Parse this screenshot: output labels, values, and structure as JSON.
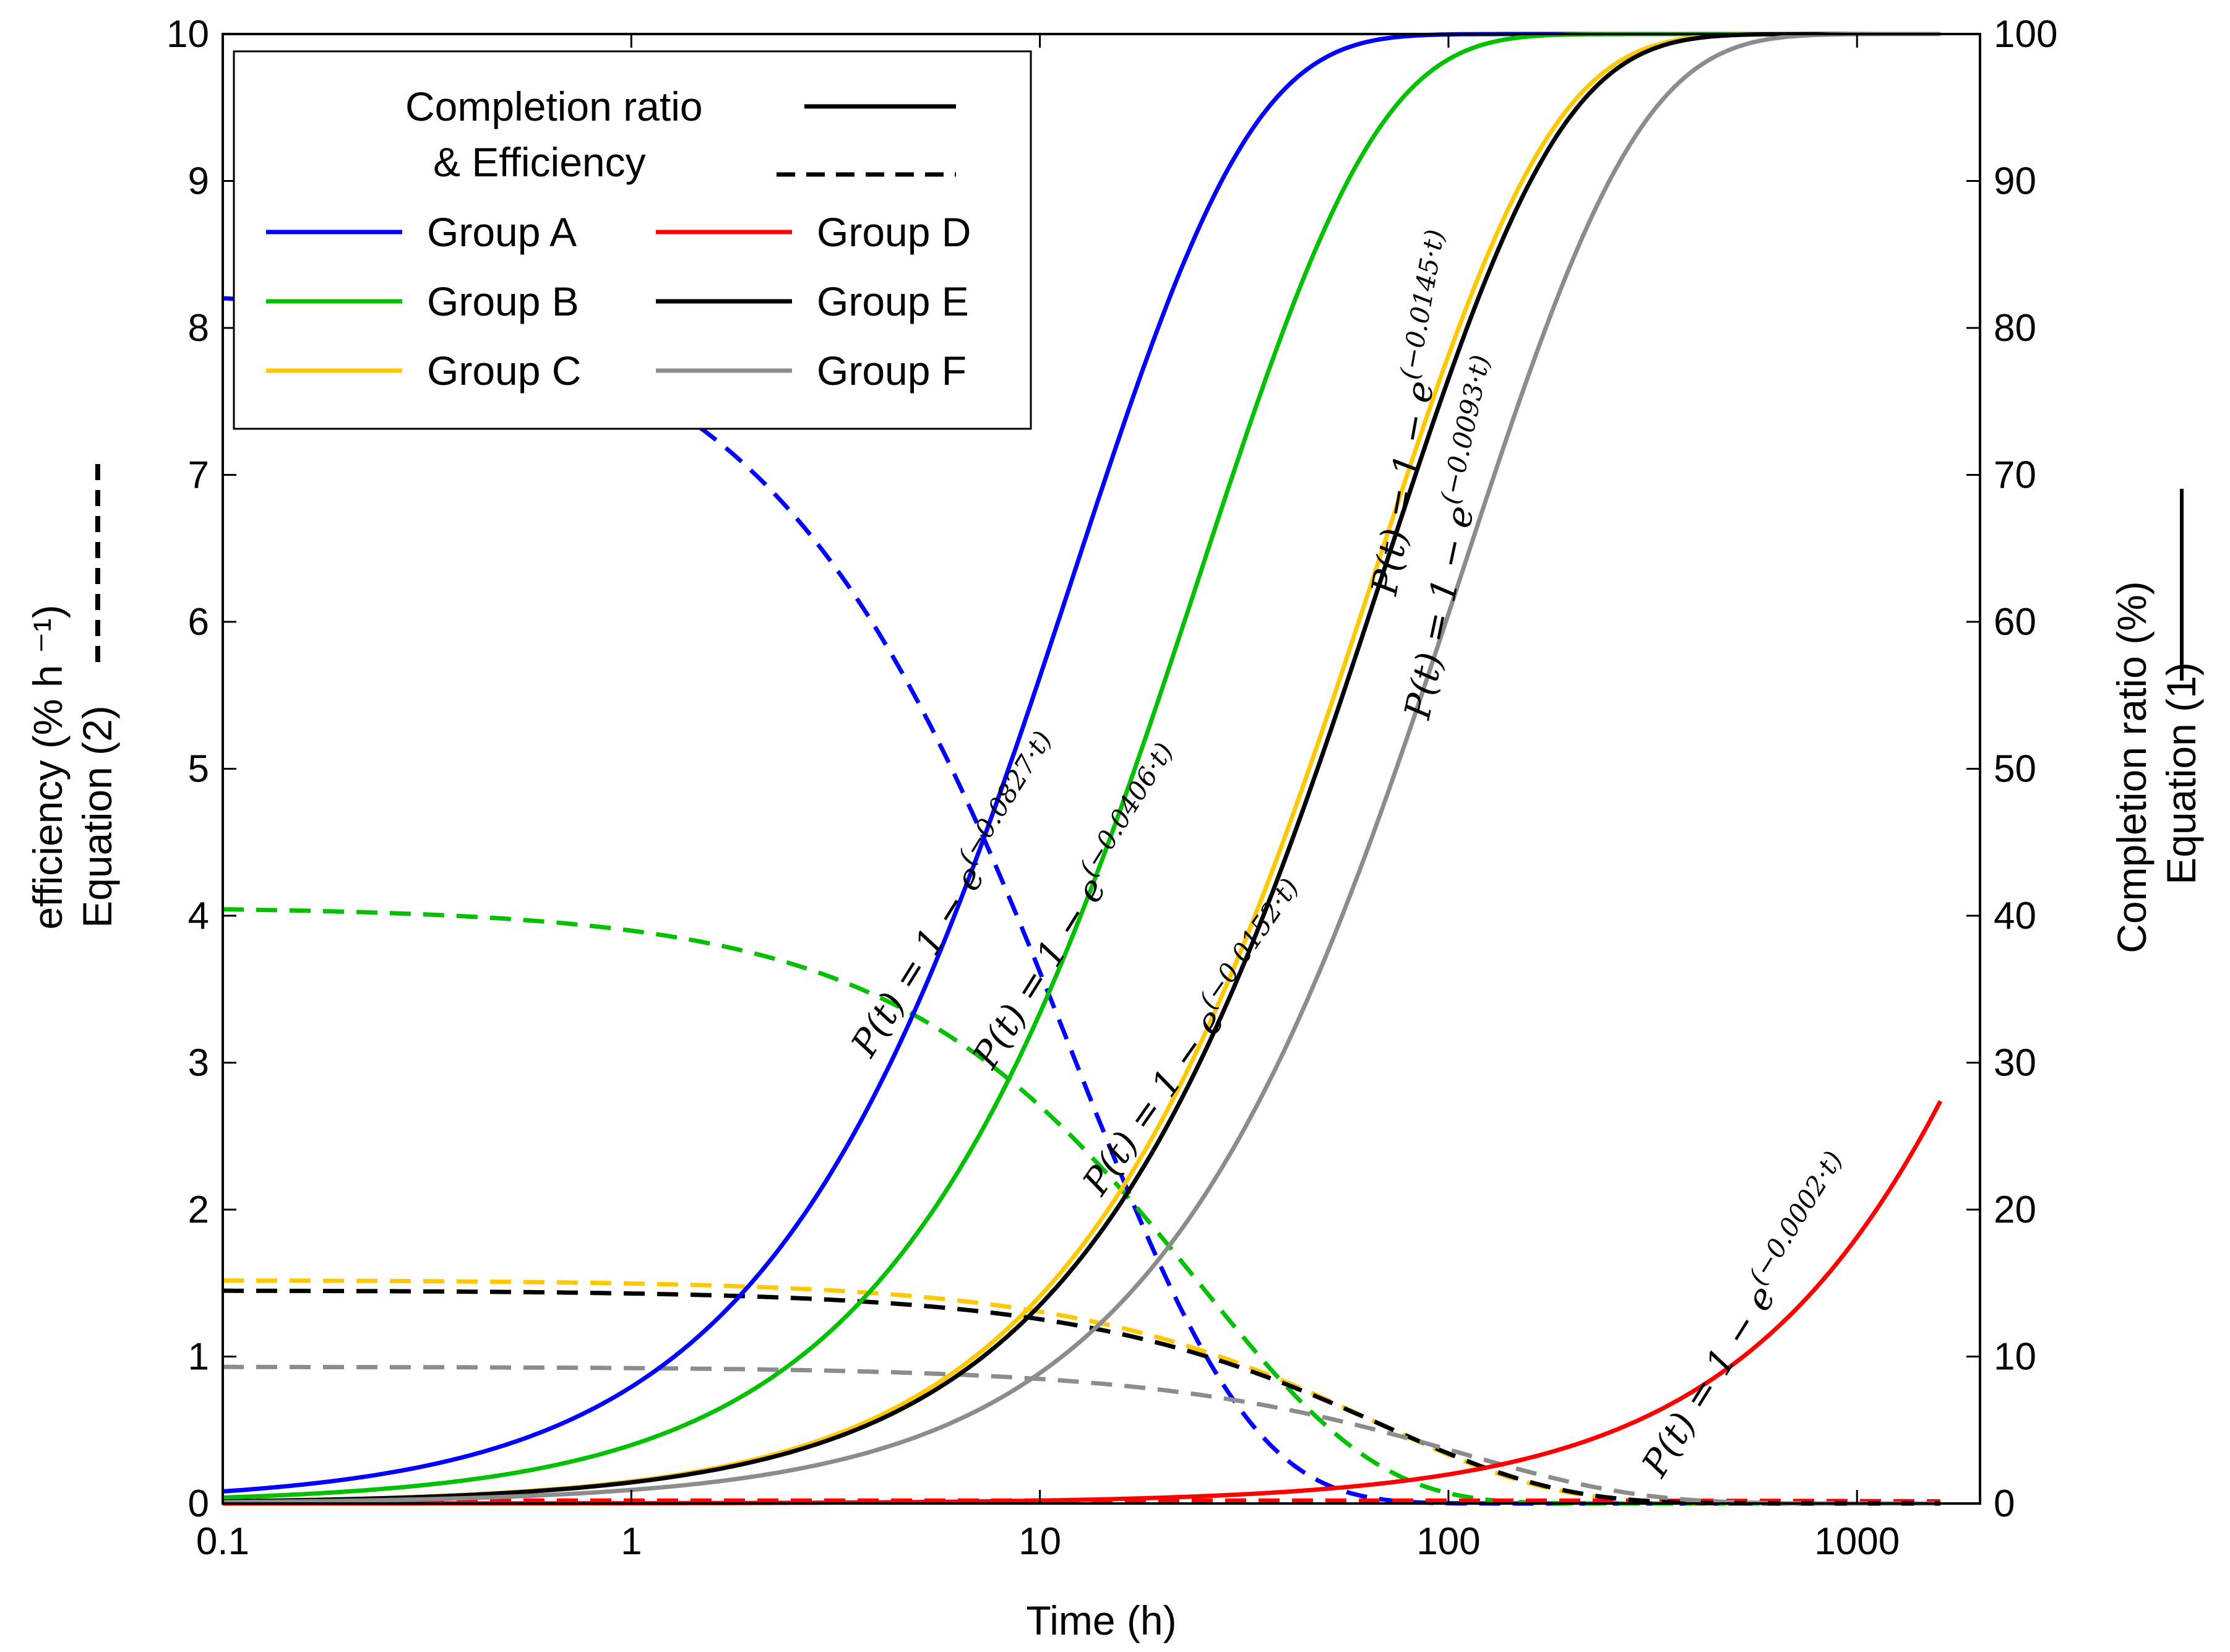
{
  "chart_data": {
    "type": "line",
    "xlabel": "Time (h)",
    "xscale": "log",
    "xlim": [
      0.1,
      2000
    ],
    "x_ticks": [
      {
        "value": 0.1,
        "label": "0.1"
      },
      {
        "value": 1,
        "label": "1"
      },
      {
        "value": 10,
        "label": "10"
      },
      {
        "value": 100,
        "label": "100"
      },
      {
        "value": 1000,
        "label": "1000"
      }
    ],
    "y_left": {
      "label_line1": "efficiency (% h ⁻¹)",
      "label_line2": "Equation (2)",
      "lim": [
        0,
        10
      ],
      "ticks": [
        "0",
        "1",
        "2",
        "3",
        "4",
        "5",
        "6",
        "7",
        "8",
        "9",
        "10"
      ]
    },
    "y_right": {
      "label_line1": "Completion ratio (%)",
      "label_line2": "Equation (1)",
      "lim": [
        0,
        100
      ],
      "ticks": [
        "0",
        "10",
        "20",
        "30",
        "40",
        "50",
        "60",
        "70",
        "80",
        "90",
        "100"
      ]
    },
    "legend": {
      "style_completion_line1": "Completion  ratio",
      "style_completion_line2": "& Efficiency"
    },
    "series": [
      {
        "name": "Group A",
        "color": "#0000ff",
        "k": 0.0827,
        "x_end": 1600
      },
      {
        "name": "Group B",
        "color": "#00c000",
        "k": 0.0406,
        "x_end": 1600
      },
      {
        "name": "Group C",
        "color": "#ffc800",
        "k": 0.0152,
        "x_end": 1600
      },
      {
        "name": "Group D",
        "color": "#ff0000",
        "k": 0.0002,
        "x_end": 1600
      },
      {
        "name": "Group E",
        "color": "#000000",
        "k": 0.0145,
        "x_end": 1600
      },
      {
        "name": "Group F",
        "color": "#8c8c8c",
        "k": 0.0093,
        "x_end": 1600
      }
    ],
    "equations": [
      {
        "group": "Group A",
        "lhs": "P(t) = 1 − e",
        "exp": "(−0.0827·t)"
      },
      {
        "group": "Group B",
        "lhs": "P(t) = 1 − e",
        "exp": "(−0.0406·t)"
      },
      {
        "group": "Group C",
        "lhs": "P(t) = 1 − e",
        "exp": "(−0.0152·t)"
      },
      {
        "group": "Group D",
        "lhs": "P(t) = 1 − e",
        "exp": "(−0.0002·t)"
      },
      {
        "group": "Group E",
        "lhs": "P(t) = 1 − e",
        "exp": "(−0.0145·t)"
      },
      {
        "group": "Group F",
        "lhs": "P(t) = 1 − e",
        "exp": "(−0.0093·t)"
      }
    ]
  }
}
